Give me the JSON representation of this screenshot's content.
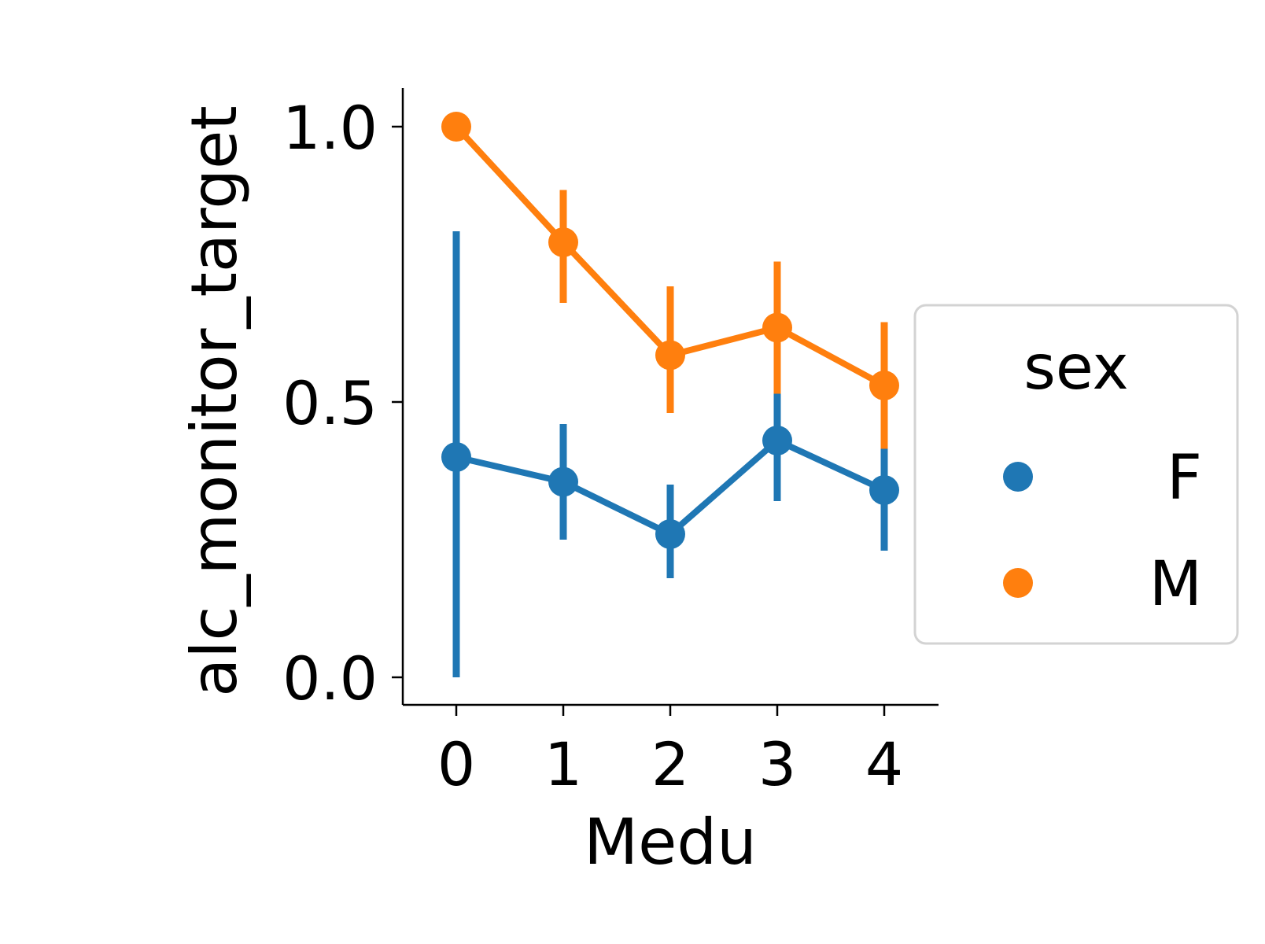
{
  "chart_data": {
    "type": "line",
    "xlabel": "Medu",
    "ylabel": "alc_monitor_target",
    "categories": [
      "0",
      "1",
      "2",
      "3",
      "4"
    ],
    "ylim": [
      -0.05,
      1.07
    ],
    "yticks": [
      "0.0",
      "0.5",
      "1.0"
    ],
    "ytick_values": [
      0.0,
      0.5,
      1.0
    ],
    "grid": false,
    "legend": {
      "title": "sex",
      "placement": "center-right outside"
    },
    "series": [
      {
        "name": "F",
        "color": "#1f77b4",
        "values": [
          0.4,
          0.355,
          0.26,
          0.43,
          0.34
        ],
        "ci_low": [
          0.0,
          0.25,
          0.18,
          0.32,
          0.23
        ],
        "ci_high": [
          0.81,
          0.46,
          0.35,
          0.515,
          0.415
        ]
      },
      {
        "name": "M",
        "color": "#ff7f0e",
        "values": [
          1.0,
          0.79,
          0.585,
          0.635,
          0.53
        ],
        "ci_low": [
          1.0,
          0.68,
          0.48,
          0.515,
          0.415
        ],
        "ci_high": [
          1.0,
          0.885,
          0.71,
          0.755,
          0.645
        ]
      }
    ]
  }
}
